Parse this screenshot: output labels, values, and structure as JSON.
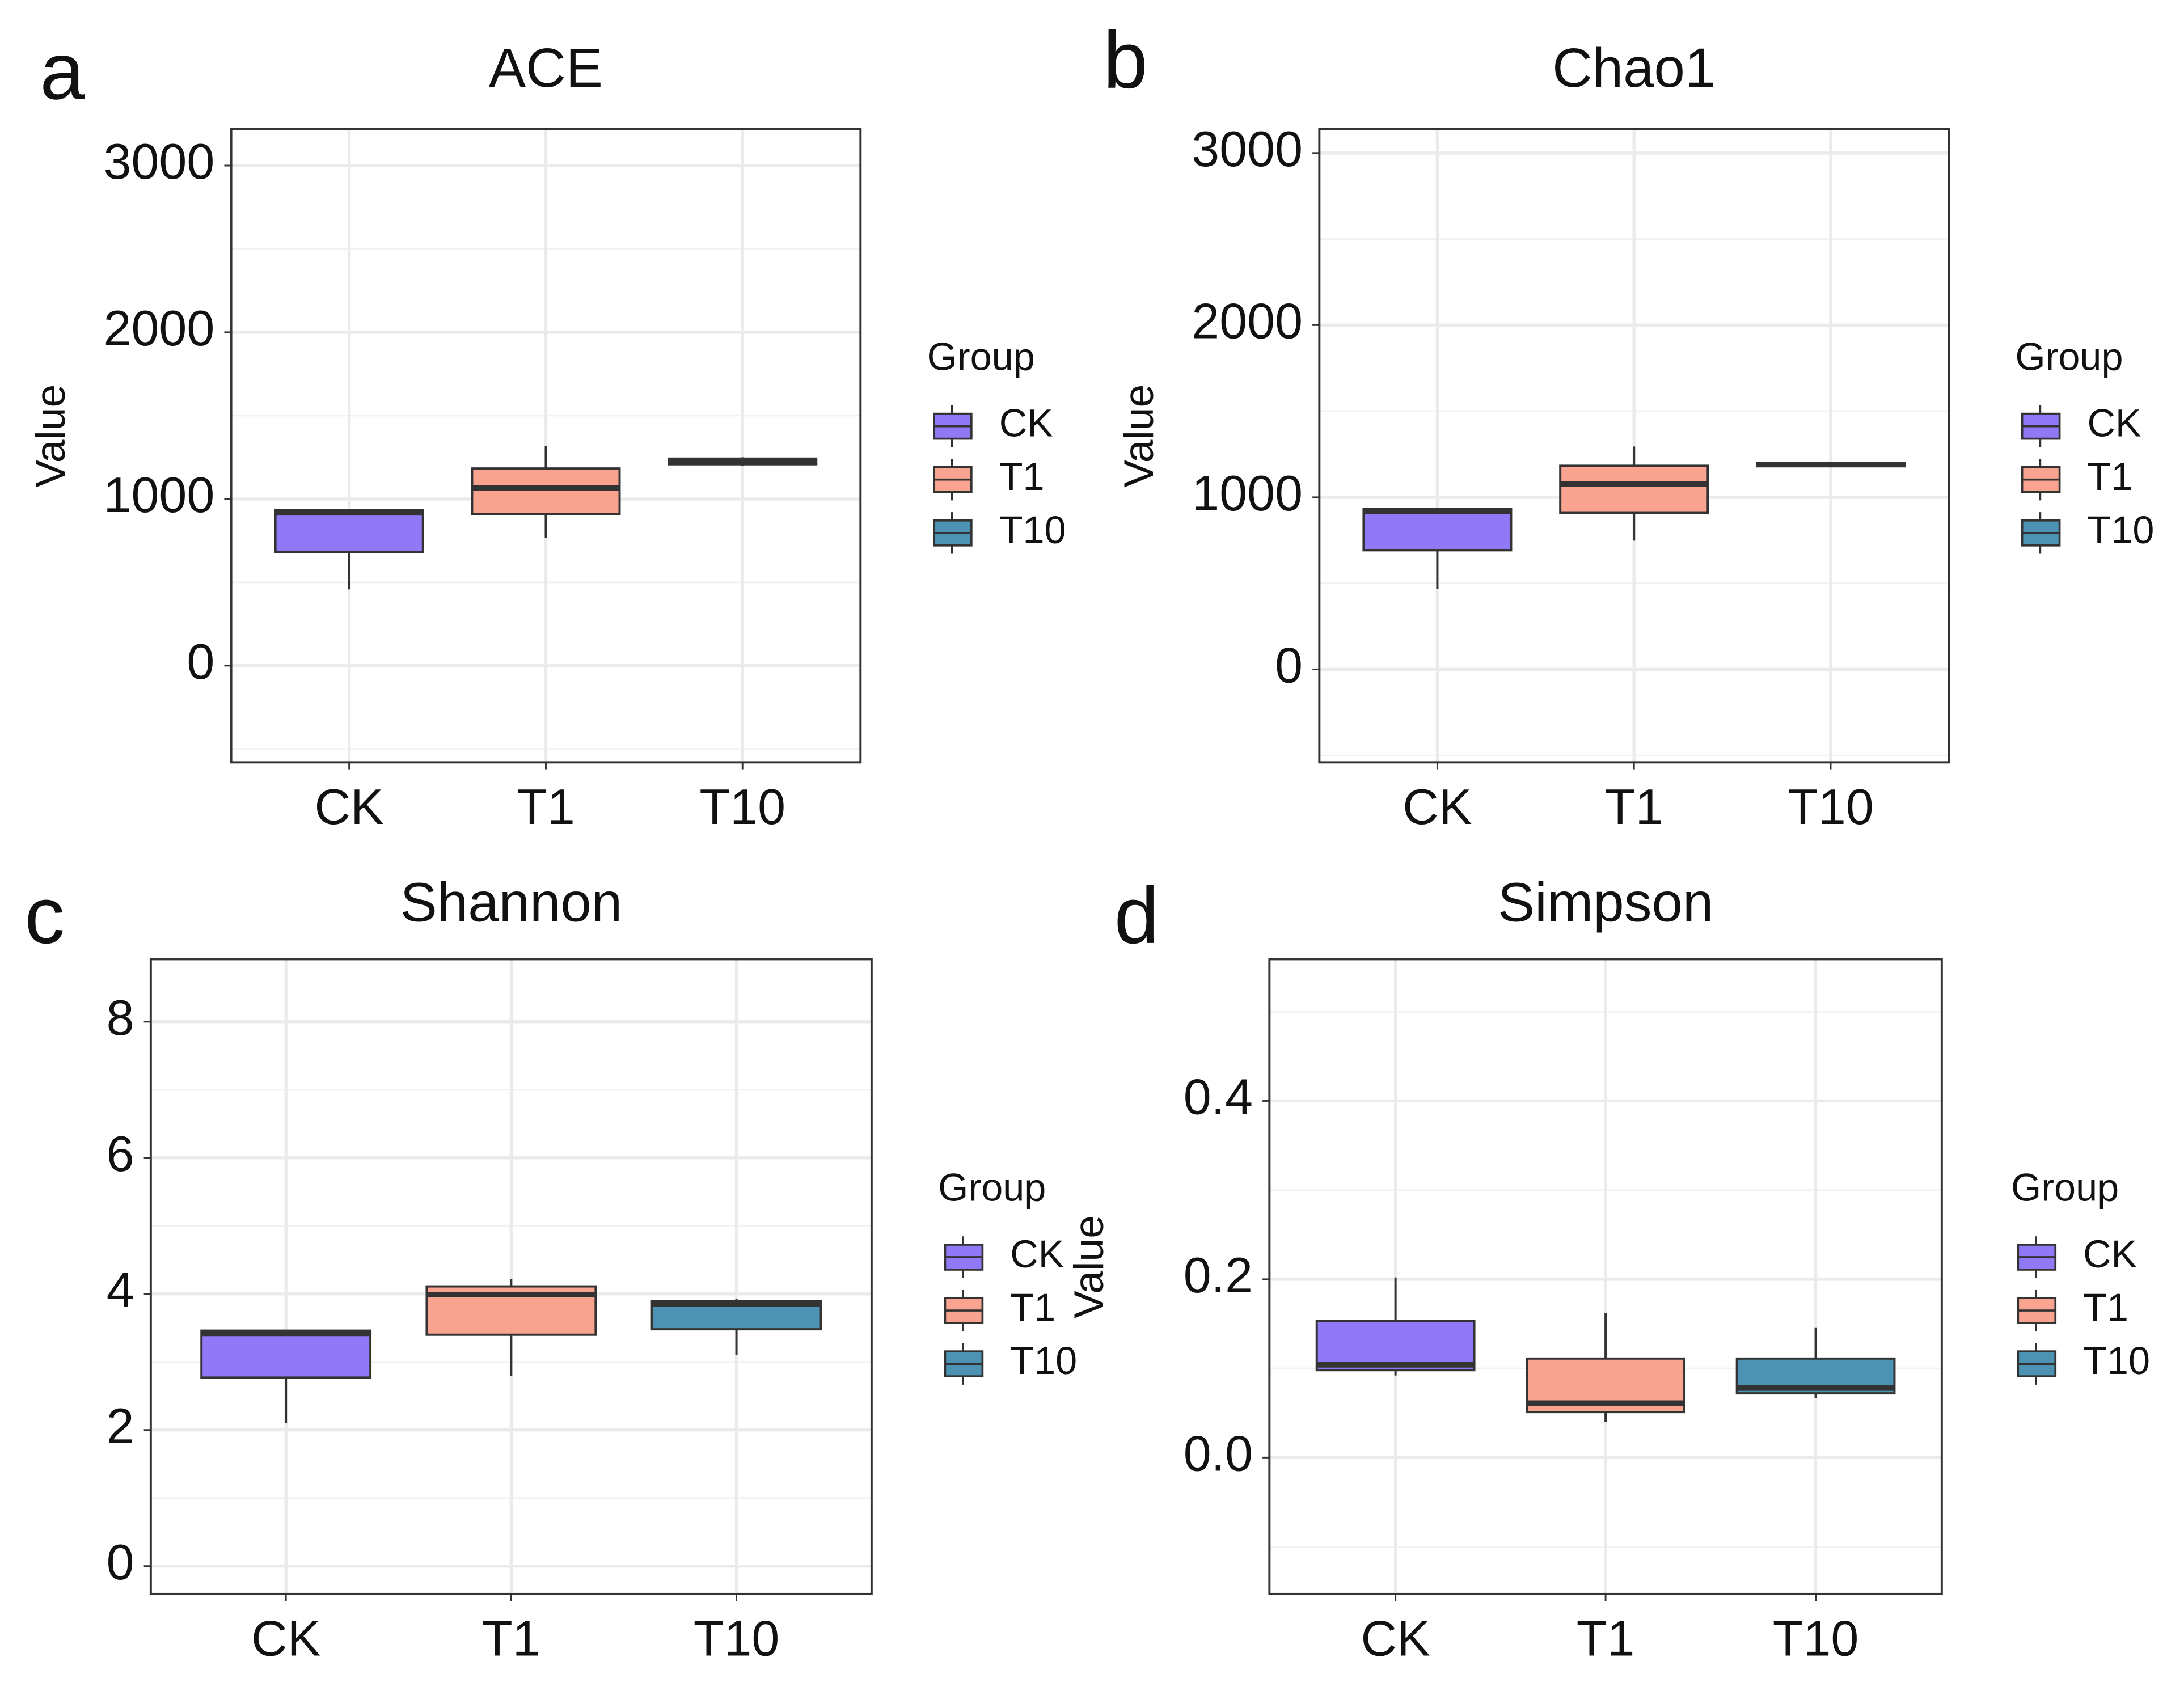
{
  "chart_data": [
    {
      "type": "box",
      "tag": "a",
      "title": "ACE",
      "y_label": "Value",
      "categories": [
        "CK",
        "T1",
        "T10"
      ],
      "ylim": [
        -580,
        3220
      ],
      "yticks": [
        0,
        1000,
        2000,
        3000
      ],
      "minor_yticks": [
        -500,
        500,
        1500,
        2500
      ],
      "grid": true,
      "legend_title": "Group",
      "legend_position": "right",
      "series": [
        {
          "name": "CK",
          "color": "#9178f7",
          "stats": {
            "min": 458,
            "q1": 683,
            "median": 917,
            "q3": 933,
            "max": 933
          }
        },
        {
          "name": "T1",
          "color": "#f9a391",
          "stats": {
            "min": 767,
            "q1": 908,
            "median": 1067,
            "q3": 1183,
            "max": 1317
          }
        },
        {
          "name": "T10",
          "color": "#4b92b3",
          "stats": {
            "min": 1200,
            "q1": 1208,
            "median": 1225,
            "q3": 1242,
            "max": 1250
          }
        }
      ]
    },
    {
      "type": "box",
      "tag": "b",
      "title": "Chao1",
      "y_label": "Value",
      "categories": [
        "CK",
        "T1",
        "T10"
      ],
      "ylim": [
        -540,
        3140
      ],
      "yticks": [
        0,
        1000,
        2000,
        3000
      ],
      "minor_yticks": [
        -500,
        500,
        1500,
        2500
      ],
      "grid": true,
      "legend_title": "Group",
      "legend_position": "right",
      "series": [
        {
          "name": "CK",
          "color": "#9178f7",
          "stats": {
            "min": 467,
            "q1": 692,
            "median": 917,
            "q3": 933,
            "max": 933
          }
        },
        {
          "name": "T1",
          "color": "#f9a391",
          "stats": {
            "min": 748,
            "q1": 909,
            "median": 1078,
            "q3": 1183,
            "max": 1295
          }
        },
        {
          "name": "T10",
          "color": "#4b92b3",
          "stats": {
            "min": 1175,
            "q1": 1180,
            "median": 1191,
            "q3": 1200,
            "max": 1207
          }
        }
      ]
    },
    {
      "type": "box",
      "tag": "c",
      "title": "Shannon",
      "y_label": "Value",
      "categories": [
        "CK",
        "T1",
        "T10"
      ],
      "ylim": [
        -0.41,
        8.92
      ],
      "yticks": [
        0,
        2,
        4,
        6,
        8
      ],
      "minor_yticks": [
        1,
        3,
        5,
        7
      ],
      "grid": true,
      "legend_title": "Group",
      "legend_position": "right",
      "series": [
        {
          "name": "CK",
          "color": "#9178f7",
          "stats": {
            "min": 2.1,
            "q1": 2.77,
            "median": 3.42,
            "q3": 3.46,
            "max": 3.46
          }
        },
        {
          "name": "T1",
          "color": "#f9a391",
          "stats": {
            "min": 2.79,
            "q1": 3.4,
            "median": 3.99,
            "q3": 4.11,
            "max": 4.22
          }
        },
        {
          "name": "T10",
          "color": "#4b92b3",
          "stats": {
            "min": 3.1,
            "q1": 3.48,
            "median": 3.85,
            "q3": 3.89,
            "max": 3.93
          }
        }
      ]
    },
    {
      "type": "box",
      "tag": "d",
      "title": "Simpson",
      "y_label": "Value",
      "categories": [
        "CK",
        "T1",
        "T10"
      ],
      "ylim": [
        -0.153,
        0.559
      ],
      "yticks": [
        {
          "value": 0,
          "label": "0.0"
        },
        0.2,
        0.4
      ],
      "minor_yticks": [
        -0.1,
        0.1,
        0.3,
        0.5
      ],
      "grid": true,
      "legend_title": "Group",
      "legend_position": "right",
      "series": [
        {
          "name": "CK",
          "color": "#9178f7",
          "stats": {
            "min": 0.092,
            "q1": 0.098,
            "median": 0.104,
            "q3": 0.153,
            "max": 0.202
          }
        },
        {
          "name": "T1",
          "color": "#f9a391",
          "stats": {
            "min": 0.04,
            "q1": 0.051,
            "median": 0.061,
            "q3": 0.111,
            "max": 0.162
          }
        },
        {
          "name": "T10",
          "color": "#4b92b3",
          "stats": {
            "min": 0.067,
            "q1": 0.072,
            "median": 0.078,
            "q3": 0.111,
            "max": 0.146
          }
        }
      ]
    }
  ]
}
